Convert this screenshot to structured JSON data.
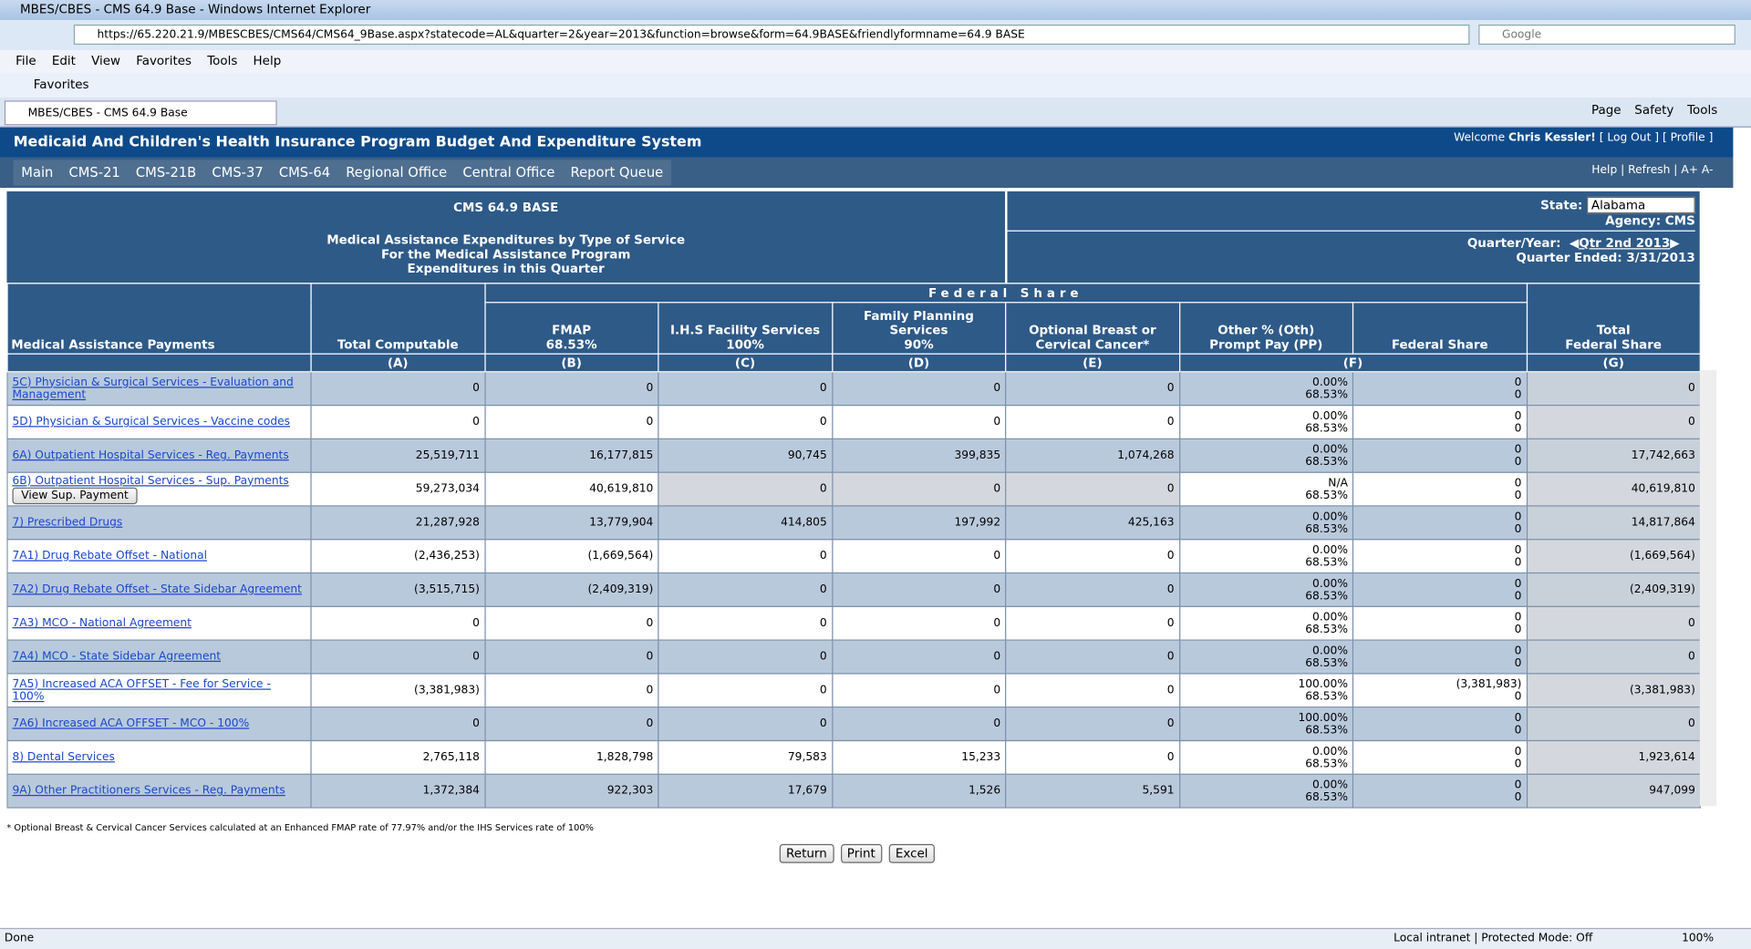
{
  "window": {
    "title": "MBES/CBES - CMS 64.9 Base - Windows Internet Explorer",
    "url": "https://65.220.21.9/MBESCBES/CMS64/CMS64_9Base.aspx?statecode=AL&quarter=2&year=2013&function=browse&form=64.9BASE&friendlyformname=64.9 BASE",
    "search": "Google",
    "menu": [
      "File",
      "Edit",
      "View",
      "Favorites",
      "Tools",
      "Help"
    ],
    "favorites": "Favorites",
    "tab": "MBES/CBES - CMS 64.9 Base",
    "commands": [
      "Page",
      "Safety",
      "Tools"
    ]
  },
  "app": {
    "title": "Medicaid And Children's Health Insurance Program Budget And Expenditure System",
    "welcome": "Welcome",
    "user": "Chris Kessler!",
    "links": [
      "[ Log Out ]",
      "[ Profile ]"
    ],
    "nav": [
      "Main",
      "CMS-21",
      "CMS-21B",
      "CMS-37",
      "CMS-64",
      "Regional Office",
      "Central Office",
      "Report Queue"
    ],
    "right_links": [
      "Help",
      "Refresh",
      "A+ A-"
    ]
  },
  "form": {
    "code": "CMS 64.9 BASE",
    "subtitle": [
      "Medical Assistance Expenditures by Type of Service",
      "For the Medical Assistance Program",
      "Expenditures in this Quarter"
    ],
    "state_label": "State:",
    "state": "Alabama",
    "agency": "Agency: CMS",
    "quarter_label": "Quarter/Year:",
    "quarter": "Qtr 2nd 2013",
    "quarter_ended": "Quarter Ended: 3/31/2013"
  },
  "table": {
    "federal_share": "Federal Share",
    "first_header": "Medical Assistance Payments",
    "headers": [
      [
        "Total Computable"
      ],
      [
        "FMAP",
        "68.53%"
      ],
      [
        "I.H.S Facility Services",
        "100%"
      ],
      [
        "Family Planning Services",
        "90%"
      ],
      [
        "Optional Breast or Cervical Cancer*"
      ],
      [
        "Other % (Oth)",
        "Prompt Pay (PP)"
      ],
      [
        "Federal Share"
      ],
      [
        "Total",
        "Federal Share"
      ]
    ],
    "letters": [
      "(A)",
      "(B)",
      "(C)",
      "(D)",
      "(E)",
      "(F)",
      "(G)"
    ],
    "button": "View Sup. Payment",
    "rows": [
      [
        "5C) Physician & Surgical Services - Evaluation and Management",
        "0",
        "0",
        "0",
        "0",
        "0",
        "0.00%",
        "68.53%",
        "0",
        "0",
        "0"
      ],
      [
        "5D) Physician & Surgical Services - Vaccine codes",
        "0",
        "0",
        "0",
        "0",
        "0",
        "0.00%",
        "68.53%",
        "0",
        "0",
        "0"
      ],
      [
        "6A) Outpatient Hospital Services - Reg. Payments",
        "25,519,711",
        "16,177,815",
        "90,745",
        "399,835",
        "1,074,268",
        "0.00%",
        "68.53%",
        "0",
        "0",
        "17,742,663"
      ],
      [
        "6B) Outpatient Hospital Services - Sup. Payments",
        "59,273,034",
        "40,619,810",
        "0",
        "0",
        "0",
        "N/A",
        "68.53%",
        "0",
        "0",
        "40,619,810"
      ],
      [
        "7) Prescribed Drugs",
        "21,287,928",
        "13,779,904",
        "414,805",
        "197,992",
        "425,163",
        "0.00%",
        "68.53%",
        "0",
        "0",
        "14,817,864"
      ],
      [
        "7A1) Drug Rebate Offset - National",
        "(2,436,253)",
        "(1,669,564)",
        "0",
        "0",
        "0",
        "0.00%",
        "68.53%",
        "0",
        "0",
        "(1,669,564)"
      ],
      [
        "7A2) Drug Rebate Offset - State Sidebar Agreement",
        "(3,515,715)",
        "(2,409,319)",
        "0",
        "0",
        "0",
        "0.00%",
        "68.53%",
        "0",
        "0",
        "(2,409,319)"
      ],
      [
        "7A3) MCO - National Agreement",
        "0",
        "0",
        "0",
        "0",
        "0",
        "0.00%",
        "68.53%",
        "0",
        "0",
        "0"
      ],
      [
        "7A4) MCO - State Sidebar Agreement",
        "0",
        "0",
        "0",
        "0",
        "0",
        "0.00%",
        "68.53%",
        "0",
        "0",
        "0"
      ],
      [
        "7A5) Increased ACA OFFSET - Fee for Service - 100%",
        "(3,381,983)",
        "0",
        "0",
        "0",
        "0",
        "100.00%",
        "68.53%",
        "(3,381,983)",
        "0",
        "(3,381,983)"
      ],
      [
        "7A6) Increased ACA OFFSET - MCO - 100%",
        "0",
        "0",
        "0",
        "0",
        "0",
        "100.00%",
        "68.53%",
        "0",
        "0",
        "0"
      ],
      [
        "8) Dental Services",
        "2,765,118",
        "1,828,798",
        "79,583",
        "15,233",
        "0",
        "0.00%",
        "68.53%",
        "0",
        "0",
        "1,923,614"
      ],
      [
        "9A) Other Practitioners Services - Reg. Payments",
        "1,372,384",
        "922,303",
        "17,679",
        "1,526",
        "5,591",
        "0.00%",
        "68.53%",
        "0",
        "0",
        "947,099"
      ]
    ]
  },
  "footnote": "* Optional Breast & Cervical Cancer Services calculated at an Enhanced FMAP rate of 77.97% and/or the IHS Services rate of 100%",
  "buttons": [
    "Return",
    "Print",
    "Excel"
  ],
  "status": {
    "left": "Done",
    "zone": "Local intranet | Protected Mode: Off",
    "zoom": "100%"
  }
}
